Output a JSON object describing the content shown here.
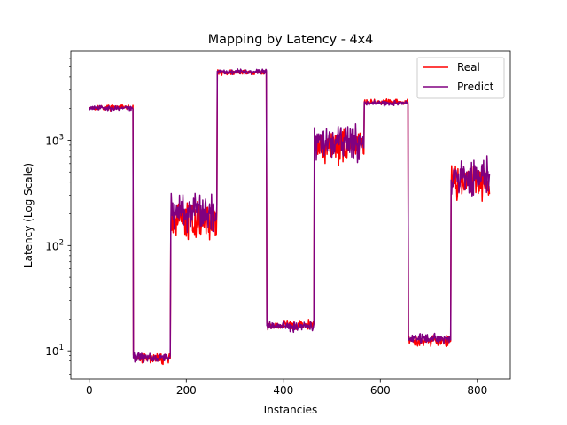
{
  "chart_data": {
    "type": "line",
    "title": "Mapping by Latency - 4x4",
    "xlabel": "Instancies",
    "ylabel": "Latency (Log Scale)",
    "yscale": "log",
    "xlim": [
      -38,
      868
    ],
    "ylim": [
      5.4,
      7000
    ],
    "x_ticks": [
      0,
      200,
      400,
      600,
      800
    ],
    "y_ticks": [
      {
        "value": 10,
        "base": "10",
        "exp": "1"
      },
      {
        "value": 100,
        "base": "10",
        "exp": "2"
      },
      {
        "value": 1000,
        "base": "10",
        "exp": "3"
      }
    ],
    "legend_position": "top-right",
    "segments": [
      {
        "x_start": 0,
        "x_end": 90,
        "real": 2050,
        "predict": 2020
      },
      {
        "x_start": 91,
        "x_end": 167,
        "real": 8.5,
        "predict": 8.7
      },
      {
        "x_start": 168,
        "x_end": 263,
        "real": 175,
        "predict": 210
      },
      {
        "x_start": 264,
        "x_end": 365,
        "real": 4400,
        "predict": 4500
      },
      {
        "x_start": 366,
        "x_end": 463,
        "real": 17.5,
        "predict": 17.2
      },
      {
        "x_start": 464,
        "x_end": 566,
        "real": 900,
        "predict": 950
      },
      {
        "x_start": 567,
        "x_end": 657,
        "real": 2300,
        "predict": 2250
      },
      {
        "x_start": 658,
        "x_end": 745,
        "real": 12.5,
        "predict": 13
      },
      {
        "x_start": 746,
        "x_end": 825,
        "real": 420,
        "predict": 450
      }
    ],
    "series": [
      {
        "name": "Real",
        "color": "#ff0000"
      },
      {
        "name": "Predict",
        "color": "#800080"
      }
    ]
  }
}
